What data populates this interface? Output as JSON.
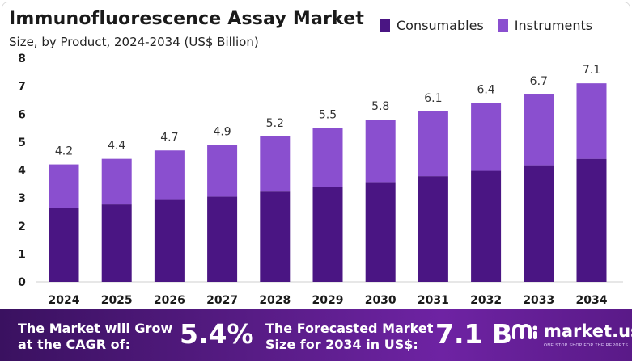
{
  "header": {
    "title": "Immunofluorescence Assay Market",
    "subtitle": "Size, by Product, 2024-2034 (US$ Billion)"
  },
  "legend": [
    {
      "label": "Consumables",
      "color": "#4a1583"
    },
    {
      "label": "Instruments",
      "color": "#8a4fcf"
    }
  ],
  "chart_data": {
    "type": "bar",
    "stacked": true,
    "categories": [
      "2024",
      "2025",
      "2026",
      "2027",
      "2028",
      "2029",
      "2030",
      "2031",
      "2032",
      "2033",
      "2034"
    ],
    "series": [
      {
        "name": "Consumables",
        "color": "#4a1583",
        "values": [
          2.63,
          2.77,
          2.93,
          3.05,
          3.23,
          3.4,
          3.57,
          3.78,
          3.97,
          4.17,
          4.4
        ]
      },
      {
        "name": "Instruments",
        "color": "#8a4fcf",
        "values": [
          1.57,
          1.63,
          1.77,
          1.85,
          1.97,
          2.1,
          2.23,
          2.32,
          2.43,
          2.53,
          2.7
        ]
      }
    ],
    "totals": [
      4.2,
      4.4,
      4.7,
      4.9,
      5.2,
      5.5,
      5.8,
      6.1,
      6.4,
      6.7,
      7.1
    ],
    "total_labels": [
      "4.2",
      "4.4",
      "4.7",
      "4.9",
      "5.2",
      "5.5",
      "5.8",
      "6.1",
      "6.4",
      "6.7",
      "7.1"
    ],
    "yticks": [
      0,
      1,
      2,
      3,
      4,
      5,
      6,
      7,
      8
    ],
    "ylim": [
      0,
      8
    ],
    "xlabel": "",
    "ylabel": "",
    "grid": false,
    "legend_position": "top-right"
  },
  "banner": {
    "cagr_text_line1": "The Market will Grow",
    "cagr_text_line2": "at the CAGR of:",
    "cagr_value": "5.4%",
    "forecast_text_line1": "The Forecasted Market",
    "forecast_text_line2": "Size for 2034 in US$:",
    "forecast_value": "7.1 B",
    "brand_name": "market.us",
    "brand_tagline": "ONE STOP SHOP FOR THE REPORTS"
  }
}
